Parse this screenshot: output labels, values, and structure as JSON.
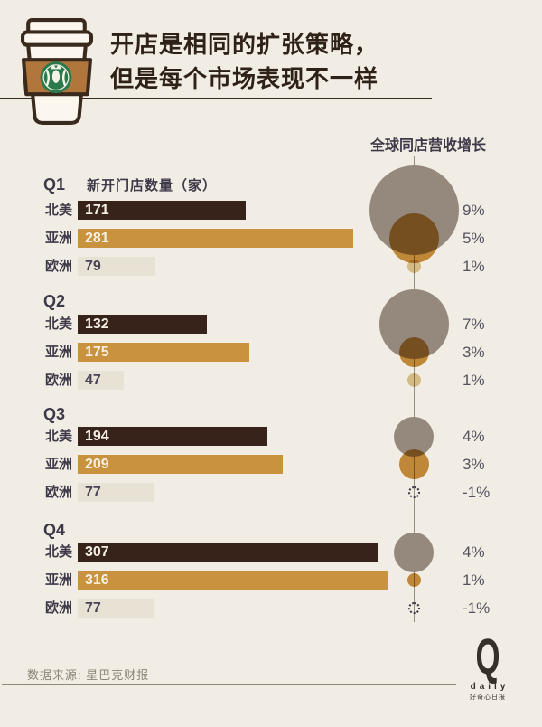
{
  "title": {
    "line1": "开店是相同的扩张策略，",
    "line2": "但是每个市场表现不一样"
  },
  "bubble_header": "全球同店营收增长",
  "bars_header": "新开门店数量（家）",
  "source": "数据来源: 星巴克财报",
  "logo": {
    "q": "Q",
    "daily": "daily",
    "caption": "好奇心日报"
  },
  "colors": {
    "background": "#f2ede4",
    "title_text": "#2e2118",
    "heading_text": "#3e3949",
    "pct_text": "#56515f",
    "bar_na": "#38231a",
    "bar_asia": "#c8923e",
    "bar_europe": "#e8e2d4",
    "value_on_dark": "#f4efe5",
    "value_on_light": "#4a4459",
    "bubble_na": "#95897d",
    "bubble_asia": "#c8923e",
    "bubble_europe": "#dfc993",
    "negative_outline": "#3f3946",
    "axis_line": "#968e81",
    "rule_dark": "#382b1f",
    "rule_light": "#8f887c",
    "source_text": "#8a8377",
    "logo_color": "#35302a",
    "cup_outline": "#3a2a1d",
    "sleeve_brown": "#b1763b",
    "starbucks_green": "#2b7a4b"
  },
  "chart_data": {
    "type": "bar",
    "title": "开店是相同的扩张策略，但是每个市场表现不一样",
    "bar_series_label": "新开门店数量（家）",
    "bubble_series_label": "全球同店营收增长",
    "categories": [
      "Q1",
      "Q2",
      "Q3",
      "Q4"
    ],
    "regions": [
      "北美",
      "亚洲",
      "欧洲"
    ],
    "new_stores": {
      "北美": [
        171,
        132,
        194,
        307
      ],
      "亚洲": [
        281,
        175,
        209,
        316
      ],
      "欧洲": [
        79,
        47,
        77,
        77
      ]
    },
    "same_store_growth_pct": {
      "北美": [
        9,
        7,
        4,
        4
      ],
      "亚洲": [
        5,
        3,
        3,
        1
      ],
      "欧洲": [
        1,
        1,
        -1,
        -1
      ]
    },
    "source": "星巴克财报"
  }
}
